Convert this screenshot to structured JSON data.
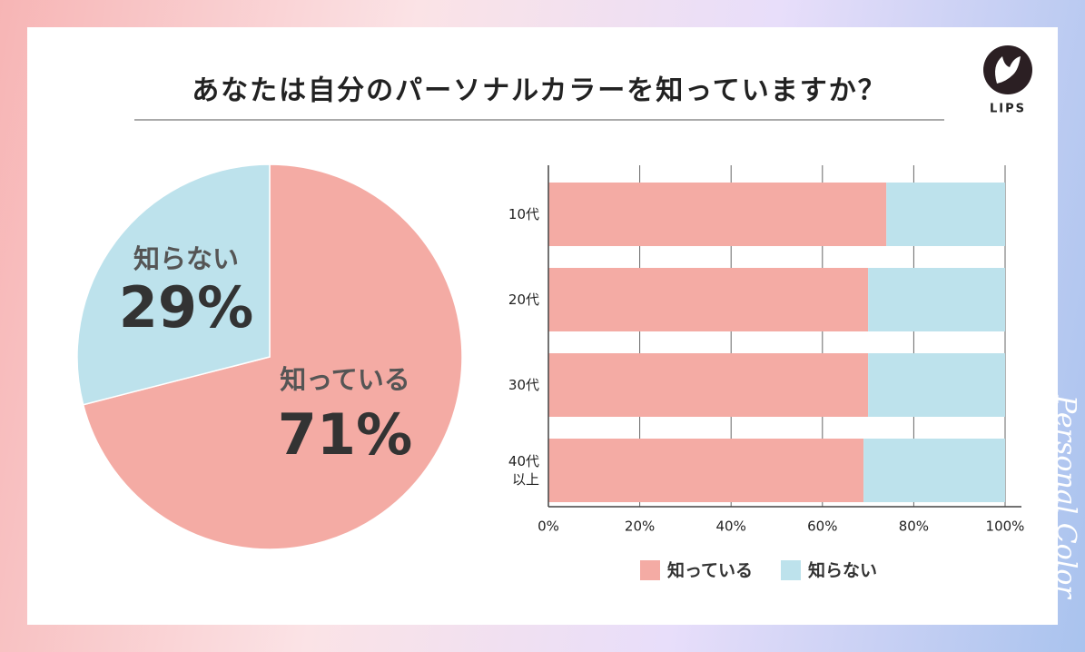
{
  "title": "あなたは自分のパーソナルカラーを知っていますか？",
  "logo": "LIPS",
  "side_text": "Personal Color",
  "chart_data": [
    {
      "type": "pie",
      "categories": [
        "知っている",
        "知らない"
      ],
      "values": [
        71,
        29
      ],
      "value_labels": [
        "71%",
        "29%"
      ],
      "colors": [
        "#f4aba4",
        "#bde2ec"
      ]
    },
    {
      "type": "stacked_barh",
      "categories": [
        "10代",
        "20代",
        "30代",
        "40代\n以上"
      ],
      "series": [
        {
          "name": "知っている",
          "color": "#f4aba4",
          "values": [
            74,
            70,
            70,
            69
          ]
        },
        {
          "name": "知らない",
          "color": "#bde2ec",
          "values": [
            26,
            30,
            30,
            31
          ]
        }
      ],
      "xlim": [
        0,
        100
      ],
      "xticks": [
        {
          "value": 0,
          "label": "0%"
        },
        {
          "value": 20,
          "label": "20%"
        },
        {
          "value": 40,
          "label": "40%"
        },
        {
          "value": 60,
          "label": "60%"
        },
        {
          "value": 80,
          "label": "80%"
        },
        {
          "value": 100,
          "label": "100%"
        }
      ],
      "grid": true
    }
  ]
}
